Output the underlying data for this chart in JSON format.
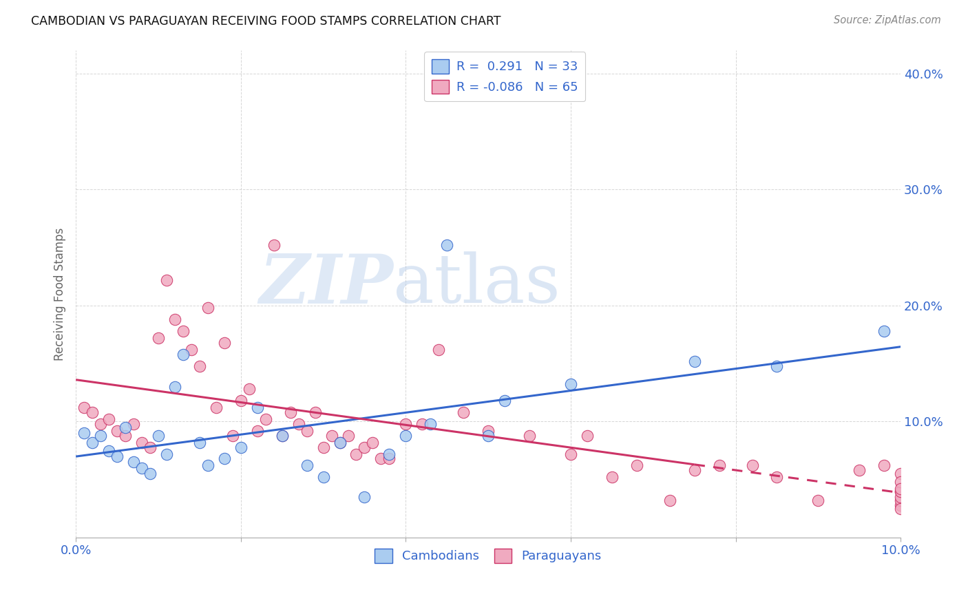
{
  "title": "CAMBODIAN VS PARAGUAYAN RECEIVING FOOD STAMPS CORRELATION CHART",
  "source": "Source: ZipAtlas.com",
  "ylabel": "Receiving Food Stamps",
  "xlim": [
    0.0,
    0.1
  ],
  "ylim": [
    0.0,
    0.42
  ],
  "xticks": [
    0.0,
    0.02,
    0.04,
    0.06,
    0.08,
    0.1
  ],
  "xtick_labels_show": [
    "0.0%",
    "",
    "",
    "",
    "",
    "10.0%"
  ],
  "yticks": [
    0.0,
    0.1,
    0.2,
    0.3,
    0.4
  ],
  "ytick_labels": [
    "",
    "10.0%",
    "20.0%",
    "30.0%",
    "40.0%"
  ],
  "background_color": "#ffffff",
  "grid_color": "#cccccc",
  "cambodian_color": "#aaccf0",
  "paraguayan_color": "#f0aac0",
  "cambodian_line_color": "#3366cc",
  "paraguayan_line_color": "#cc3366",
  "legend_R_cambodian": "0.291",
  "legend_N_cambodian": "33",
  "legend_R_paraguayan": "-0.086",
  "legend_N_paraguayan": "65",
  "watermark_zip": "ZIP",
  "watermark_atlas": "atlas",
  "cambodian_x": [
    0.001,
    0.002,
    0.003,
    0.004,
    0.005,
    0.006,
    0.007,
    0.008,
    0.009,
    0.01,
    0.011,
    0.012,
    0.013,
    0.015,
    0.016,
    0.018,
    0.02,
    0.022,
    0.025,
    0.028,
    0.03,
    0.032,
    0.035,
    0.038,
    0.04,
    0.043,
    0.045,
    0.05,
    0.052,
    0.06,
    0.075,
    0.085,
    0.098
  ],
  "cambodian_y": [
    0.09,
    0.082,
    0.088,
    0.075,
    0.07,
    0.095,
    0.065,
    0.06,
    0.055,
    0.088,
    0.072,
    0.13,
    0.158,
    0.082,
    0.062,
    0.068,
    0.078,
    0.112,
    0.088,
    0.062,
    0.052,
    0.082,
    0.035,
    0.072,
    0.088,
    0.098,
    0.252,
    0.088,
    0.118,
    0.132,
    0.152,
    0.148,
    0.178
  ],
  "paraguayan_x": [
    0.001,
    0.002,
    0.003,
    0.004,
    0.005,
    0.006,
    0.007,
    0.008,
    0.009,
    0.01,
    0.011,
    0.012,
    0.013,
    0.014,
    0.015,
    0.016,
    0.017,
    0.018,
    0.019,
    0.02,
    0.021,
    0.022,
    0.023,
    0.024,
    0.025,
    0.026,
    0.027,
    0.028,
    0.029,
    0.03,
    0.031,
    0.032,
    0.033,
    0.034,
    0.035,
    0.036,
    0.037,
    0.038,
    0.04,
    0.042,
    0.044,
    0.047,
    0.05,
    0.055,
    0.06,
    0.062,
    0.065,
    0.068,
    0.072,
    0.075,
    0.078,
    0.082,
    0.085,
    0.09,
    0.095,
    0.098,
    0.1,
    0.1,
    0.1,
    0.1,
    0.1,
    0.1,
    0.1,
    0.1,
    0.1
  ],
  "paraguayan_y": [
    0.112,
    0.108,
    0.098,
    0.102,
    0.092,
    0.088,
    0.098,
    0.082,
    0.078,
    0.172,
    0.222,
    0.188,
    0.178,
    0.162,
    0.148,
    0.198,
    0.112,
    0.168,
    0.088,
    0.118,
    0.128,
    0.092,
    0.102,
    0.252,
    0.088,
    0.108,
    0.098,
    0.092,
    0.108,
    0.078,
    0.088,
    0.082,
    0.088,
    0.072,
    0.078,
    0.082,
    0.068,
    0.068,
    0.098,
    0.098,
    0.162,
    0.108,
    0.092,
    0.088,
    0.072,
    0.088,
    0.052,
    0.062,
    0.032,
    0.058,
    0.062,
    0.062,
    0.052,
    0.032,
    0.058,
    0.062,
    0.028,
    0.032,
    0.025,
    0.04,
    0.035,
    0.055,
    0.04,
    0.048,
    0.042
  ]
}
